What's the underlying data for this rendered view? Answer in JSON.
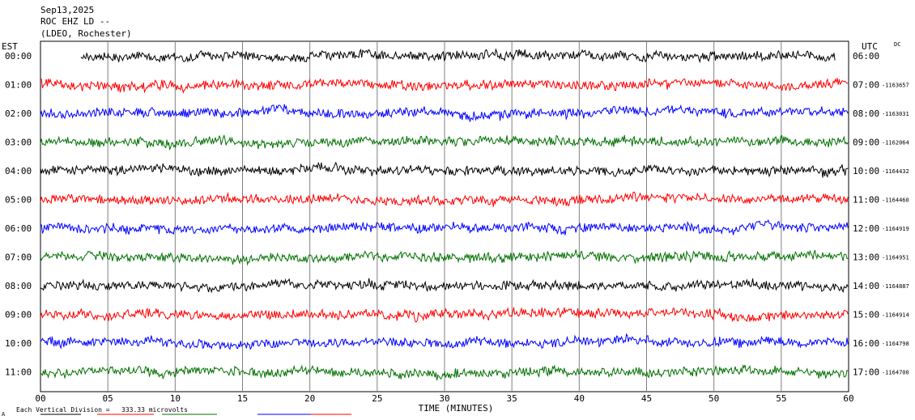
{
  "header": {
    "date": "Sep13,2025",
    "station": "ROC EHZ LD --",
    "network": "(LDEO, Rochester)"
  },
  "left_tz": "EST",
  "right_tz": "UTC",
  "dc_label": "DC",
  "footer": {
    "scale_prefix": "Each Vertical Division = ",
    "scale_value": "333.33 microvolts",
    "corner_mark": "A"
  },
  "chart_data": {
    "type": "line",
    "title": "Sep13,2025 ROC EHZ LD -- (LDEO, Rochester)",
    "xlabel": "TIME (MINUTES)",
    "xlim": [
      0,
      60
    ],
    "x_ticks": [
      "00",
      "05",
      "10",
      "15",
      "20",
      "25",
      "30",
      "35",
      "40",
      "45",
      "50",
      "55",
      "60"
    ],
    "grid": "vertical lines every 5 minutes",
    "trace_colors": [
      "#000000",
      "#ff0000",
      "#0000ff",
      "#007000"
    ],
    "rows": [
      {
        "est": "00:00",
        "utc": "06:00",
        "color": "#000000",
        "dc": "",
        "start": 3,
        "end": 59
      },
      {
        "est": "01:00",
        "utc": "07:00",
        "color": "#ff0000",
        "dc": "-1163657",
        "start": 0,
        "end": 60
      },
      {
        "est": "02:00",
        "utc": "08:00",
        "color": "#0000ff",
        "dc": "-1163031",
        "start": 0,
        "end": 60
      },
      {
        "est": "03:00",
        "utc": "09:00",
        "color": "#007000",
        "dc": "-1162064",
        "start": 0,
        "end": 60
      },
      {
        "est": "04:00",
        "utc": "10:00",
        "color": "#000000",
        "dc": "-1164432",
        "start": 0,
        "end": 60
      },
      {
        "est": "05:00",
        "utc": "11:00",
        "color": "#ff0000",
        "dc": "-1164460",
        "start": 0,
        "end": 60
      },
      {
        "est": "06:00",
        "utc": "12:00",
        "color": "#0000ff",
        "dc": "-1164919",
        "start": 0,
        "end": 60
      },
      {
        "est": "07:00",
        "utc": "13:00",
        "color": "#007000",
        "dc": "-1164951",
        "start": 0,
        "end": 60
      },
      {
        "est": "08:00",
        "utc": "14:00",
        "color": "#000000",
        "dc": "-1164887",
        "start": 0,
        "end": 60
      },
      {
        "est": "09:00",
        "utc": "15:00",
        "color": "#ff0000",
        "dc": "-1164914",
        "start": 0,
        "end": 60
      },
      {
        "est": "10:00",
        "utc": "16:00",
        "color": "#0000ff",
        "dc": "-1164798",
        "start": 0,
        "end": 60
      },
      {
        "est": "11:00",
        "utc": "17:00",
        "color": "#007000",
        "dc": "-1164700",
        "start": 0,
        "end": 60
      }
    ]
  }
}
